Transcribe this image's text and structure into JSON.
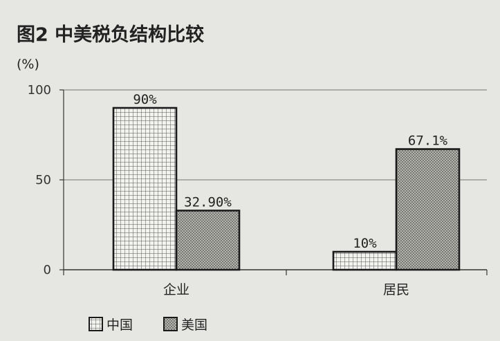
{
  "chart_data": {
    "type": "bar",
    "title": "图2   中美税负结构比较",
    "ylabel": "(%)",
    "xlabel": "",
    "ylim": [
      0,
      100
    ],
    "yticks": [
      0,
      50,
      100
    ],
    "categories": [
      "企业",
      "居民"
    ],
    "series": [
      {
        "name": "中国",
        "values": [
          90,
          10
        ],
        "labels": [
          "90%",
          "10%"
        ],
        "pattern": "grid"
      },
      {
        "name": "美国",
        "values": [
          32.9,
          67.1
        ],
        "labels": [
          "32.90%",
          "67.1%"
        ],
        "pattern": "dots"
      }
    ],
    "grid": true,
    "legend_position": "bottom-left"
  },
  "colors": {
    "background": "#e6e6e2",
    "bar_stroke": "#1a1a1a",
    "grid_line": "#8a8a8a",
    "china_fill": "#f2f2ee",
    "us_fill": "#bdbdb8"
  }
}
